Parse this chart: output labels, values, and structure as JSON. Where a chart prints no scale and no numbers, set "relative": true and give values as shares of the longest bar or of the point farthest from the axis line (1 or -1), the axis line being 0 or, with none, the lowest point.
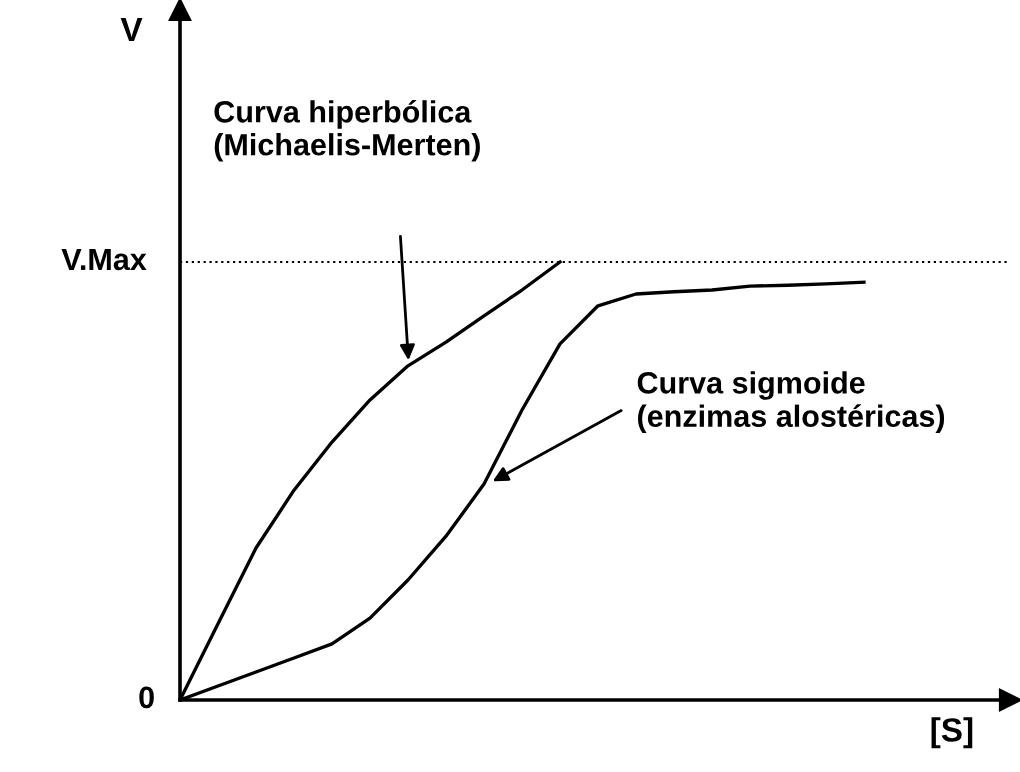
{
  "chart_data": {
    "type": "line",
    "relative": true,
    "xlabel": "[S]",
    "categories": [
      null,
      null,
      null,
      null,
      null,
      null,
      null,
      null,
      null,
      null,
      null,
      null,
      null,
      null,
      null,
      null,
      null,
      null,
      null
    ],
    "series": [
      {
        "color": "#000000",
        "values": [
          0,
          0.174,
          0.347,
          0.479,
          0.589,
          0.685,
          0.763,
          0.817,
          0.877,
          0.936,
          1.0,
          null,
          null,
          null,
          null,
          null,
          null,
          null,
          null
        ]
      },
      {
        "color": "#000000",
        "values": [
          0,
          0.032,
          0.064,
          0.096,
          0.128,
          0.187,
          0.274,
          0.374,
          0.493,
          0.662,
          0.813,
          0.9,
          0.927,
          0.932,
          0.936,
          0.945,
          0.947,
          0.95,
          0.954
        ]
      }
    ],
    "ref_lines": [
      {
        "axis": "y",
        "value": 1.0,
        "label": "V.Max",
        "color": "#000000",
        "line_style": "dotted"
      }
    ],
    "annotations": [
      "Curva hiperbólica\n(Michaelis-Merten)",
      "Curva sigmoide\n(enzimas alostéricas)",
      "0",
      "V"
    ],
    "marker": "none",
    "line_style": "solid"
  }
}
